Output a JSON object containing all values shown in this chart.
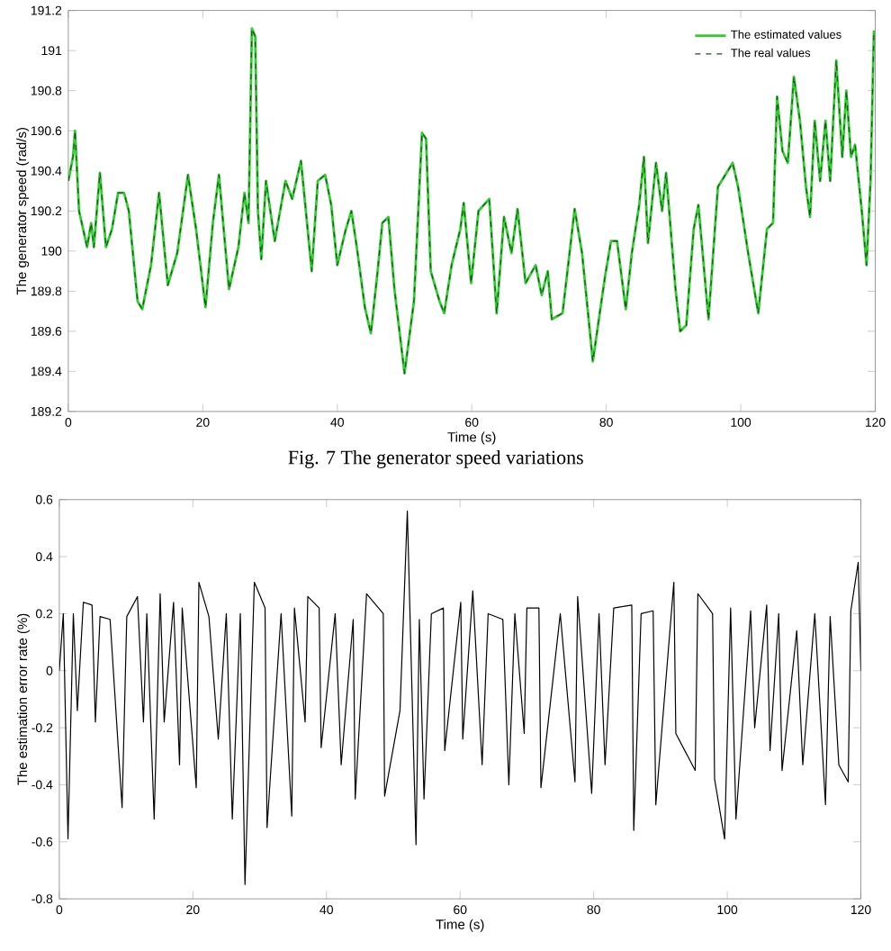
{
  "chart_data": [
    {
      "type": "line",
      "xlabel": "Time (s)",
      "ylabel": "The generator speed (rad/s)",
      "annotations": [
        "Fig. 7 The generator speed variations"
      ],
      "legend": "top right",
      "grid": false,
      "marker": "none",
      "xlim": [
        0,
        120
      ],
      "ylim": [
        189.2,
        191.2
      ],
      "xticks": [
        0,
        20,
        40,
        60,
        80,
        100,
        120
      ],
      "yticks": [
        189.2,
        189.4,
        189.6,
        189.8,
        190,
        190.2,
        190.4,
        190.6,
        190.8,
        191,
        191.2
      ],
      "x": [
        0,
        0.7,
        1.0,
        1.6,
        2.8,
        3.4,
        3.8,
        4.7,
        5.6,
        6.5,
        7.4,
        8.3,
        9.0,
        10.3,
        11.0,
        12.3,
        13.5,
        14.8,
        16.2,
        17.8,
        19.0,
        20.4,
        21.5,
        22.4,
        23.9,
        25.3,
        26.2,
        26.8,
        27.3,
        27.8,
        28.2,
        28.7,
        29.4,
        30.7,
        32.3,
        33.3,
        34.6,
        36.2,
        37.1,
        38.2,
        39.1,
        40.0,
        41.2,
        42.1,
        42.9,
        44.1,
        45.0,
        46.0,
        46.7,
        47.6,
        48.5,
        50.0,
        51.4,
        52.6,
        53.2,
        53.9,
        55.2,
        55.9,
        57.0,
        58.3,
        58.8,
        59.9,
        61.0,
        62.6,
        63.7,
        64.8,
        65.9,
        66.8,
        68.0,
        69.5,
        70.4,
        71.3,
        71.9,
        73.5,
        75.3,
        76.4,
        78.0,
        79.8,
        80.7,
        81.6,
        82.9,
        83.8,
        84.9,
        85.6,
        86.2,
        87.4,
        88.3,
        88.9,
        90.3,
        91.0,
        91.9,
        93.0,
        93.7,
        95.2,
        96.6,
        97.7,
        98.8,
        99.6,
        101.1,
        102.6,
        103.9,
        104.8,
        105.4,
        106.2,
        107.0,
        107.9,
        108.8,
        109.7,
        110.3,
        111.0,
        111.8,
        112.6,
        113.3,
        114.2,
        115.1,
        115.7,
        116.4,
        117.0,
        118.0,
        118.7,
        119.3,
        119.8
      ],
      "series": [
        {
          "name": "The estimated values",
          "color": "#33cc33",
          "line_style": "solid",
          "values": [
            190.35,
            190.47,
            190.6,
            190.2,
            190.02,
            190.14,
            190.02,
            190.39,
            190.02,
            190.11,
            190.29,
            190.29,
            190.2,
            189.75,
            189.71,
            189.93,
            190.29,
            189.83,
            189.99,
            190.38,
            190.11,
            189.72,
            190.14,
            190.38,
            189.81,
            190.02,
            190.29,
            190.14,
            191.11,
            191.07,
            190.2,
            189.96,
            190.35,
            190.05,
            190.35,
            190.26,
            190.45,
            189.9,
            190.35,
            190.38,
            190.23,
            189.93,
            190.1,
            190.2,
            190.02,
            189.72,
            189.59,
            189.9,
            190.14,
            190.17,
            189.81,
            189.39,
            189.75,
            190.59,
            190.56,
            189.9,
            189.75,
            189.69,
            189.93,
            190.11,
            190.24,
            189.84,
            190.2,
            190.26,
            189.69,
            190.17,
            189.99,
            190.21,
            189.84,
            189.93,
            189.78,
            189.9,
            189.66,
            189.69,
            190.21,
            189.99,
            189.45,
            189.87,
            190.05,
            190.05,
            189.71,
            189.99,
            190.23,
            190.47,
            190.04,
            190.44,
            190.2,
            190.39,
            189.81,
            189.6,
            189.63,
            190.11,
            190.23,
            189.66,
            190.32,
            190.38,
            190.44,
            190.32,
            189.99,
            189.69,
            190.11,
            190.14,
            190.77,
            190.5,
            190.44,
            190.87,
            190.65,
            190.32,
            190.17,
            190.65,
            190.35,
            190.65,
            190.35,
            190.95,
            190.47,
            190.8,
            190.47,
            190.53,
            190.2,
            189.93,
            190.35,
            191.1
          ]
        },
        {
          "name": "The real values",
          "color": "#1f4f1f",
          "line_style": "dashed",
          "values": [
            190.35,
            190.47,
            190.6,
            190.2,
            190.02,
            190.14,
            190.02,
            190.39,
            190.02,
            190.11,
            190.29,
            190.29,
            190.2,
            189.75,
            189.71,
            189.93,
            190.29,
            189.83,
            189.99,
            190.38,
            190.11,
            189.72,
            190.14,
            190.38,
            189.81,
            190.02,
            190.29,
            190.14,
            191.11,
            191.07,
            190.2,
            189.96,
            190.35,
            190.05,
            190.35,
            190.26,
            190.45,
            189.9,
            190.35,
            190.38,
            190.23,
            189.93,
            190.1,
            190.2,
            190.02,
            189.72,
            189.59,
            189.9,
            190.14,
            190.17,
            189.81,
            189.39,
            189.75,
            190.59,
            190.56,
            189.9,
            189.75,
            189.69,
            189.93,
            190.11,
            190.24,
            189.84,
            190.2,
            190.26,
            189.69,
            190.17,
            189.99,
            190.21,
            189.84,
            189.93,
            189.78,
            189.9,
            189.66,
            189.69,
            190.21,
            189.99,
            189.45,
            189.87,
            190.05,
            190.05,
            189.71,
            189.99,
            190.23,
            190.47,
            190.04,
            190.44,
            190.2,
            190.39,
            189.81,
            189.6,
            189.63,
            190.11,
            190.23,
            189.66,
            190.32,
            190.38,
            190.44,
            190.32,
            189.99,
            189.69,
            190.11,
            190.14,
            190.77,
            190.5,
            190.44,
            190.87,
            190.65,
            190.32,
            190.17,
            190.65,
            190.35,
            190.65,
            190.35,
            190.95,
            190.47,
            190.8,
            190.47,
            190.53,
            190.2,
            189.93,
            190.35,
            191.1
          ]
        }
      ]
    },
    {
      "type": "line",
      "xlabel": "Time (s)",
      "ylabel": "The estimation error rate (%)",
      "legend": false,
      "grid": false,
      "marker": "none",
      "xlim": [
        0,
        120
      ],
      "ylim": [
        -0.8,
        0.6
      ],
      "xticks": [
        0,
        20,
        40,
        60,
        80,
        100,
        120
      ],
      "yticks": [
        -0.8,
        -0.6,
        -0.4,
        -0.2,
        0,
        0.2,
        0.4,
        0.6
      ],
      "x": [
        0,
        0.6,
        1.3,
        2.1,
        2.7,
        3.6,
        4.9,
        5.4,
        6.1,
        7.6,
        9.4,
        10.1,
        11.7,
        12.6,
        13.1,
        14.2,
        15.1,
        15.7,
        17.1,
        18.0,
        18.4,
        20.5,
        20.9,
        22.4,
        23.8,
        25.0,
        25.9,
        27.1,
        27.8,
        29.2,
        30.8,
        31.1,
        33.2,
        34.8,
        35.2,
        36.8,
        37.2,
        38.9,
        39.2,
        41.3,
        42.2,
        44.0,
        44.3,
        46.0,
        48.5,
        48.7,
        51.0,
        52.1,
        53.4,
        53.9,
        54.6,
        55.7,
        57.5,
        57.7,
        60.1,
        60.4,
        61.9,
        63.3,
        64.2,
        66.4,
        67.3,
        68.2,
        69.6,
        70.0,
        71.8,
        72.1,
        75.0,
        77.2,
        77.6,
        79.7,
        80.8,
        81.7,
        83.0,
        85.7,
        86.0,
        87.1,
        88.9,
        89.3,
        92.0,
        92.3,
        95.2,
        95.6,
        97.8,
        98.1,
        99.6,
        100.5,
        101.3,
        103.5,
        104.1,
        105.9,
        106.4,
        107.7,
        108.2,
        110.4,
        111.3,
        113.1,
        114.7,
        115.4,
        116.7,
        118.1,
        118.5,
        119.6,
        120
      ],
      "series": [
        {
          "color": "#000000",
          "line_style": "solid",
          "values": [
            0,
            0.2,
            -0.59,
            0.2,
            -0.14,
            0.24,
            0.23,
            -0.18,
            0.19,
            0.18,
            -0.48,
            0.19,
            0.26,
            -0.18,
            0.2,
            -0.52,
            0.27,
            -0.18,
            0.24,
            -0.33,
            0.22,
            -0.41,
            0.31,
            0.19,
            -0.24,
            0.2,
            -0.52,
            0.2,
            -0.75,
            0.31,
            0.22,
            -0.55,
            0.2,
            -0.51,
            0.22,
            -0.18,
            0.26,
            0.22,
            -0.27,
            0.2,
            -0.33,
            0.18,
            -0.45,
            0.27,
            0.2,
            -0.44,
            -0.14,
            0.56,
            -0.61,
            0.18,
            -0.45,
            0.2,
            0.22,
            -0.28,
            0.24,
            -0.24,
            0.28,
            -0.33,
            0.2,
            0.18,
            -0.4,
            0.2,
            -0.22,
            0.22,
            0.22,
            -0.41,
            0.2,
            -0.39,
            0.26,
            -0.43,
            0.2,
            -0.33,
            0.22,
            0.23,
            -0.56,
            0.2,
            0.21,
            -0.47,
            0.31,
            -0.22,
            -0.35,
            0.27,
            0.2,
            -0.38,
            -0.59,
            0.22,
            -0.52,
            0.21,
            -0.2,
            0.23,
            -0.28,
            0.2,
            -0.35,
            0.14,
            -0.33,
            0.2,
            -0.47,
            0.19,
            -0.33,
            -0.39,
            0.21,
            0.38,
            0
          ]
        }
      ]
    }
  ]
}
